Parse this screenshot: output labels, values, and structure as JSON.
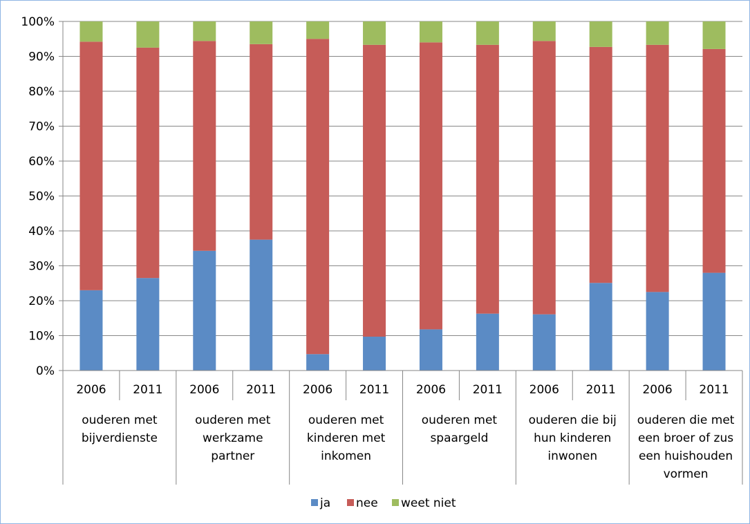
{
  "chart_data": {
    "type": "bar",
    "stacked": true,
    "percent_stacked": true,
    "title": "",
    "xlabel": "",
    "ylabel": "",
    "ylim": [
      0,
      100
    ],
    "yticks": [
      "0%",
      "10%",
      "20%",
      "30%",
      "40%",
      "50%",
      "60%",
      "70%",
      "80%",
      "90%",
      "100%"
    ],
    "grid": "horizontal",
    "legend_position": "bottom",
    "categories": [
      "2006",
      "2011",
      "2006",
      "2011",
      "2006",
      "2011",
      "2006",
      "2011",
      "2006",
      "2011",
      "2006",
      "2011"
    ],
    "groups": [
      {
        "lines": [
          "ouderen met",
          "bijverdienste"
        ]
      },
      {
        "lines": [
          "ouderen met",
          "werkzame",
          "partner"
        ]
      },
      {
        "lines": [
          "ouderen met",
          "kinderen met",
          "inkomen"
        ]
      },
      {
        "lines": [
          "ouderen met",
          "spaargeld"
        ]
      },
      {
        "lines": [
          "ouderen die bij",
          "hun kinderen",
          "inwonen"
        ]
      },
      {
        "lines": [
          "ouderen die met",
          "een broer of zus",
          "een huishouden",
          "vormen"
        ]
      }
    ],
    "series": [
      {
        "name": "ja",
        "color": "#5b8bc5",
        "values": [
          23,
          26.5,
          34.3,
          37.5,
          4.7,
          9.7,
          11.8,
          16.3,
          16.1,
          25.1,
          22.5,
          28
        ]
      },
      {
        "name": "nee",
        "color": "#c65c58",
        "values": [
          71.2,
          66,
          60.1,
          56,
          90.3,
          83.6,
          82.2,
          77,
          78.3,
          67.6,
          70.8,
          64.1
        ]
      },
      {
        "name": "weet niet",
        "color": "#9ebc5f",
        "values": [
          5.8,
          7.5,
          5.6,
          6.5,
          5,
          6.7,
          6,
          6.7,
          5.6,
          7.3,
          6.7,
          7.9
        ]
      }
    ]
  }
}
